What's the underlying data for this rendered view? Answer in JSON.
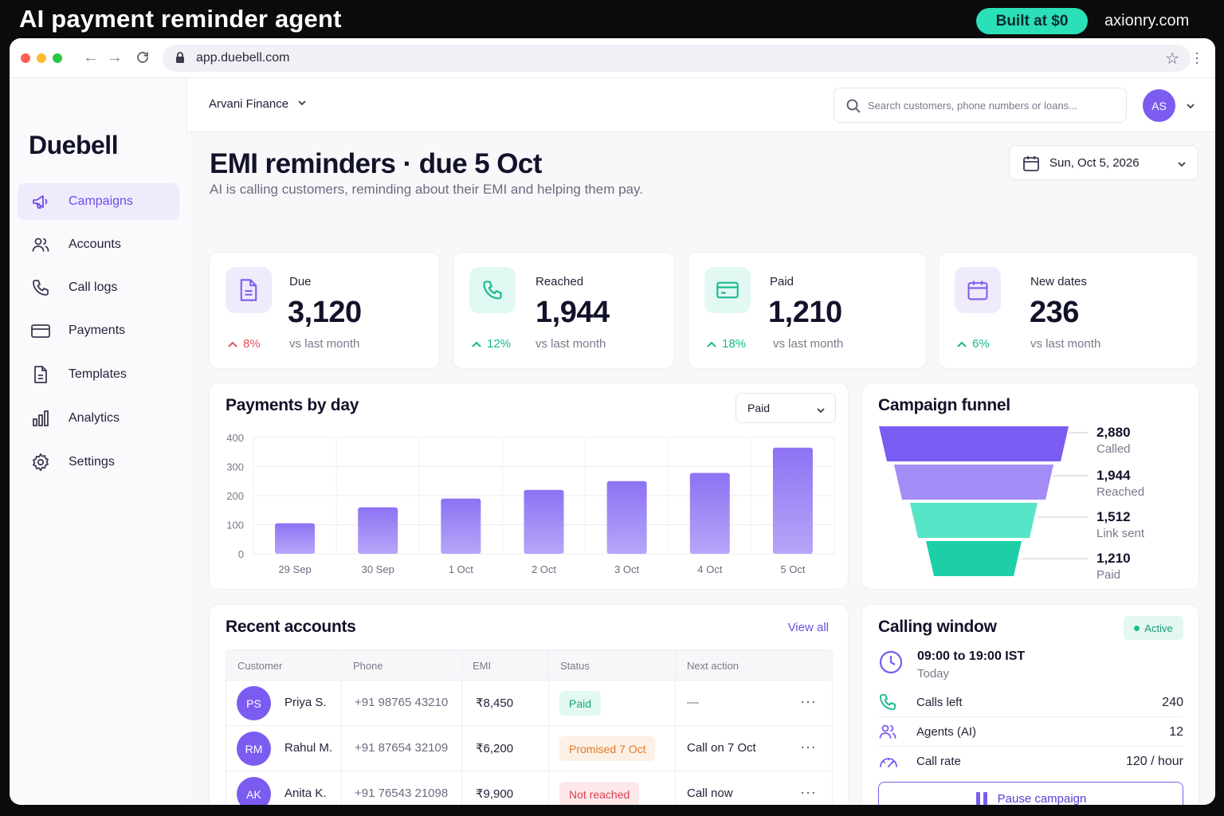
{
  "banner": {
    "title": "AI payment reminder agent",
    "badge": "Built at $0",
    "site": "axionry.com"
  },
  "browser": {
    "url": "app.duebell.com"
  },
  "app": {
    "logo": "Duebell",
    "org": "Arvani Finance",
    "search_placeholder": "Search customers, phone numbers or loans...",
    "user_initials": "AS"
  },
  "sidebar": {
    "items": [
      {
        "label": "Campaigns",
        "icon": "megaphone-icon",
        "active": true
      },
      {
        "label": "Accounts",
        "icon": "users-icon"
      },
      {
        "label": "Call logs",
        "icon": "phone-icon"
      },
      {
        "label": "Payments",
        "icon": "credit-card-icon"
      },
      {
        "label": "Templates",
        "icon": "document-icon"
      },
      {
        "label": "Analytics",
        "icon": "bar-chart-icon"
      },
      {
        "label": "Settings",
        "icon": "gear-icon"
      }
    ]
  },
  "page": {
    "title": "EMI reminders · due 5 Oct",
    "subtitle": "AI is calling customers, reminding about their EMI and helping them pay.",
    "date": "Sun, Oct 5, 2026"
  },
  "stats": [
    {
      "label": "Due",
      "value": "3,120",
      "delta": "8%",
      "direction": "up",
      "delta_color": "#e2525a",
      "vs": "vs last month",
      "icon": "document-icon"
    },
    {
      "label": "Reached",
      "value": "1,944",
      "delta": "12%",
      "direction": "up",
      "delta_color": "#16b891",
      "vs": "vs last month",
      "icon": "phone-icon"
    },
    {
      "label": "Paid",
      "value": "1,210",
      "delta": "18%",
      "direction": "up",
      "delta_color": "#16b891",
      "vs": "vs last month",
      "icon": "credit-card-icon"
    },
    {
      "label": "New dates",
      "value": "236",
      "delta": "6%",
      "direction": "up",
      "delta_color": "#16b891",
      "vs": "vs last month",
      "icon": "calendar-icon"
    }
  ],
  "payments_chart": {
    "title": "Payments by day",
    "filter": "Paid",
    "chart_data": {
      "type": "bar",
      "categories": [
        "29 Sep",
        "30 Sep",
        "1 Oct",
        "2 Oct",
        "3 Oct",
        "4 Oct",
        "5 Oct"
      ],
      "values": [
        105,
        160,
        190,
        220,
        250,
        278,
        365
      ],
      "yticks": [
        "400",
        "300",
        "200",
        "100",
        "0"
      ],
      "ylim": [
        0,
        400
      ],
      "grid": true,
      "color": "#9a83f4"
    }
  },
  "funnel": {
    "title": "Campaign funnel",
    "stages": [
      {
        "value": "2,880",
        "label": "Called",
        "color": "#7b5cf2"
      },
      {
        "value": "1,944",
        "label": "Reached",
        "color": "#a48cf6"
      },
      {
        "value": "1,512",
        "label": "Link sent",
        "color": "#56e5c6"
      },
      {
        "value": "1,210",
        "label": "Paid",
        "color": "#1ccfa6"
      }
    ]
  },
  "recent": {
    "title": "Recent accounts",
    "view_all": "View all",
    "columns": [
      "Customer",
      "Phone",
      "EMI",
      "Status",
      "Next action"
    ],
    "rows": [
      {
        "initials": "PS",
        "name": "Priya S.",
        "phone": "+91 98765 43210",
        "emi": "₹8,450",
        "status": "Paid",
        "status_bg": "#e3f8f0",
        "status_fg": "#16a982",
        "next": "—"
      },
      {
        "initials": "RM",
        "name": "Rahul M.",
        "phone": "+91 87654 32109",
        "emi": "₹6,200",
        "status": "Promised 7 Oct",
        "status_bg": "#fdf0e4",
        "status_fg": "#e07a2c",
        "next": "Call on 7 Oct"
      },
      {
        "initials": "AK",
        "name": "Anita K.",
        "phone": "+91 76543 21098",
        "emi": "₹9,900",
        "status": "Not reached",
        "status_bg": "#fde8ea",
        "status_fg": "#d8434e",
        "next": "Call now"
      }
    ]
  },
  "calling_window": {
    "title": "Calling window",
    "badge": "Active",
    "hours": "09:00 to 19:00 IST",
    "day": "Today",
    "rows": [
      {
        "label": "Calls left",
        "value": "240",
        "icon": "phone-icon"
      },
      {
        "label": "Agents (AI)",
        "value": "12",
        "icon": "users-icon"
      },
      {
        "label": "Call rate",
        "value": "120 / hour",
        "icon": "gauge-icon"
      }
    ],
    "button": "Pause campaign"
  }
}
